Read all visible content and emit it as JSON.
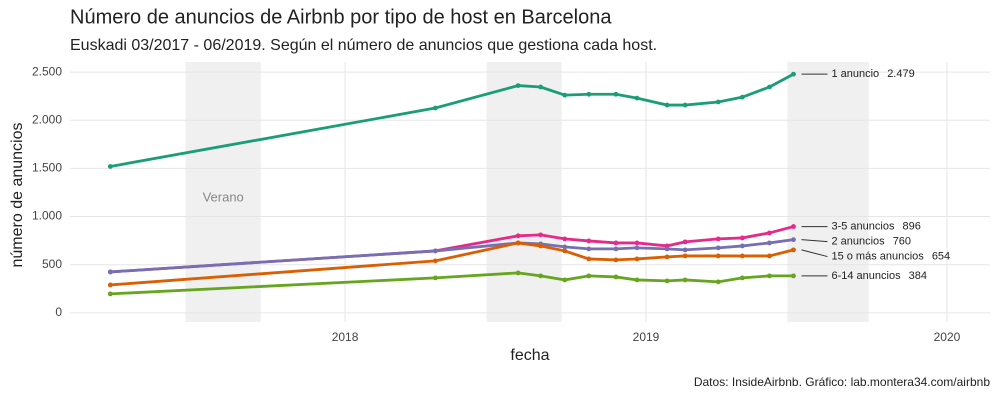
{
  "chart_data": {
    "type": "line",
    "title": "Número de anuncios de Airbnb por tipo de host en Barcelona",
    "subtitle": "Euskadi 03/2017 - 06/2019. Según el número de anuncios que gestiona cada host.",
    "xlabel": "fecha",
    "ylabel": "número de anuncios",
    "caption": "Datos: InsideAirbnb. Gráfico: lab.montera34.com/airbnb",
    "annotation": "Verano",
    "shading": [
      [
        2017.47,
        2017.72
      ],
      [
        2018.47,
        2018.72
      ],
      [
        2019.47,
        2019.74
      ]
    ],
    "x": [
      2017.22,
      2018.3,
      2018.575,
      2018.65,
      2018.73,
      2018.81,
      2018.9,
      2018.97,
      2019.07,
      2019.13,
      2019.24,
      2019.32,
      2019.41,
      2019.49
    ],
    "series": [
      {
        "name": "1 anuncio",
        "color": "#1b9e77",
        "end_label": "2.479",
        "values": [
          1520,
          2127,
          2360,
          2345,
          2261,
          2270,
          2270,
          2230,
          2158,
          2158,
          2190,
          2240,
          2345,
          2479
        ]
      },
      {
        "name": "3-5 anuncios",
        "color": "#e7298a",
        "end_label": "896",
        "values": [
          425,
          643,
          800,
          810,
          768,
          747,
          726,
          726,
          695,
          737,
          768,
          778,
          830,
          896
        ]
      },
      {
        "name": "2 anuncios",
        "color": "#7570b3",
        "end_label": "760",
        "values": [
          425,
          643,
          726,
          716,
          685,
          664,
          664,
          675,
          664,
          654,
          675,
          695,
          726,
          760
        ]
      },
      {
        "name": "15 o más anuncios",
        "color": "#d95f02",
        "end_label": "654",
        "values": [
          290,
          540,
          726,
          695,
          643,
          560,
          550,
          560,
          581,
          591,
          591,
          591,
          591,
          654
        ]
      },
      {
        "name": "6-14 anuncios",
        "color": "#66a61e",
        "end_label": "384",
        "values": [
          197,
          363,
          415,
          384,
          342,
          384,
          373,
          342,
          332,
          342,
          322,
          363,
          384,
          384
        ]
      }
    ],
    "xlim": [
      2017.086,
      2020.143
    ],
    "xticks": [
      2018,
      2019,
      2020
    ],
    "ylim": [
      -95,
      2605
    ],
    "yticks": [
      0,
      500,
      {
        "value": 1000,
        "label": "1.000"
      },
      {
        "value": 1500,
        "label": "1.500"
      },
      {
        "value": 2000,
        "label": "2.000"
      },
      {
        "value": 2500,
        "label": "2.500"
      }
    ],
    "grid": true
  }
}
